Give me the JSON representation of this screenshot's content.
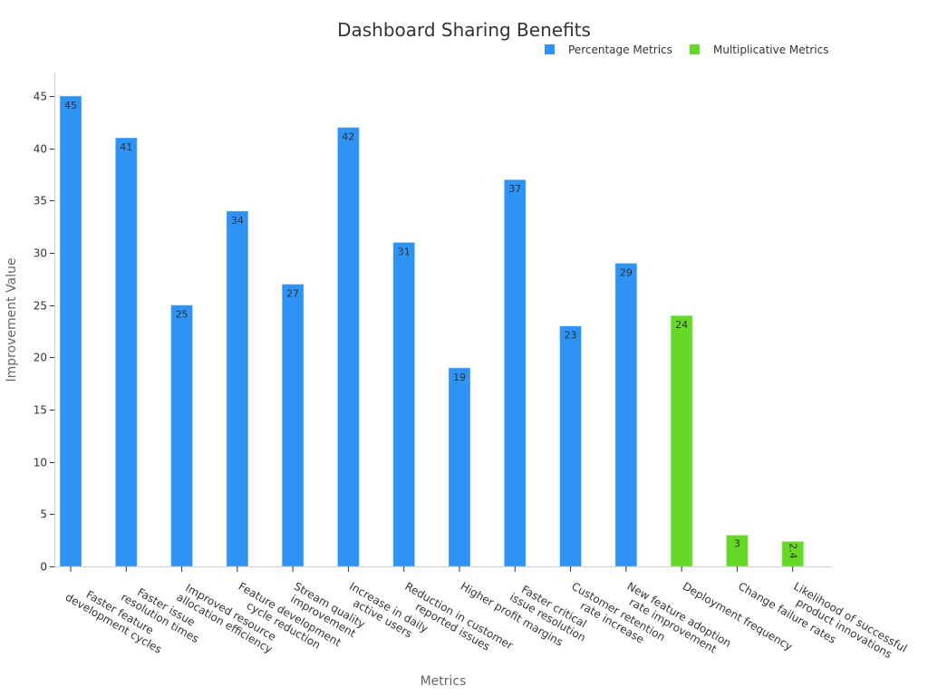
{
  "chart_data": {
    "type": "bar",
    "title": "Dashboard Sharing Benefits",
    "xlabel": "Metrics",
    "ylabel": "Improvement Value",
    "ylim": [
      0,
      47.25
    ],
    "yticks": [
      0,
      5,
      10,
      15,
      20,
      25,
      30,
      35,
      40,
      45
    ],
    "legend_position": "top-right",
    "grid": false,
    "legend": [
      {
        "name": "Percentage Metrics",
        "color": "#2f93f5"
      },
      {
        "name": "Multiplicative Metrics",
        "color": "#66d927"
      }
    ],
    "categories": [
      [
        "Faster feature",
        "development cycles"
      ],
      [
        "Faster issue",
        "resolution times"
      ],
      [
        "Improved resource",
        "allocation efficiency"
      ],
      [
        "Feature development",
        "cycle reduction"
      ],
      [
        "Stream quality",
        "improvement"
      ],
      [
        "Increase in daily",
        "active users"
      ],
      [
        "Reduction in customer",
        "reported issues"
      ],
      [
        "Higher profit margins"
      ],
      [
        "Faster critical",
        "issue resolution"
      ],
      [
        "Customer retention",
        "rate increase"
      ],
      [
        "New feature adoption",
        "rate improvement"
      ],
      [
        "Deployment frequency"
      ],
      [
        "Change failure rates"
      ],
      [
        "Likelihood of successful",
        "product innovations"
      ]
    ],
    "series": [
      {
        "name": "Percentage Metrics",
        "color": "#2f93f5",
        "values": [
          45,
          41,
          25,
          34,
          27,
          42,
          31,
          19,
          37,
          23,
          29,
          null,
          null,
          null
        ],
        "labels": [
          "45",
          "41",
          "25",
          "34",
          "27",
          "42",
          "31",
          "19",
          "37",
          "23",
          "29",
          "",
          "",
          ""
        ]
      },
      {
        "name": "Multiplicative Metrics",
        "color": "#66d927",
        "values": [
          null,
          null,
          null,
          null,
          null,
          null,
          null,
          null,
          null,
          null,
          null,
          24,
          3,
          2.4
        ],
        "labels": [
          "",
          "",
          "",
          "",
          "",
          "",
          "",
          "",
          "",
          "",
          "",
          "24",
          "3",
          "2.4"
        ]
      }
    ]
  }
}
